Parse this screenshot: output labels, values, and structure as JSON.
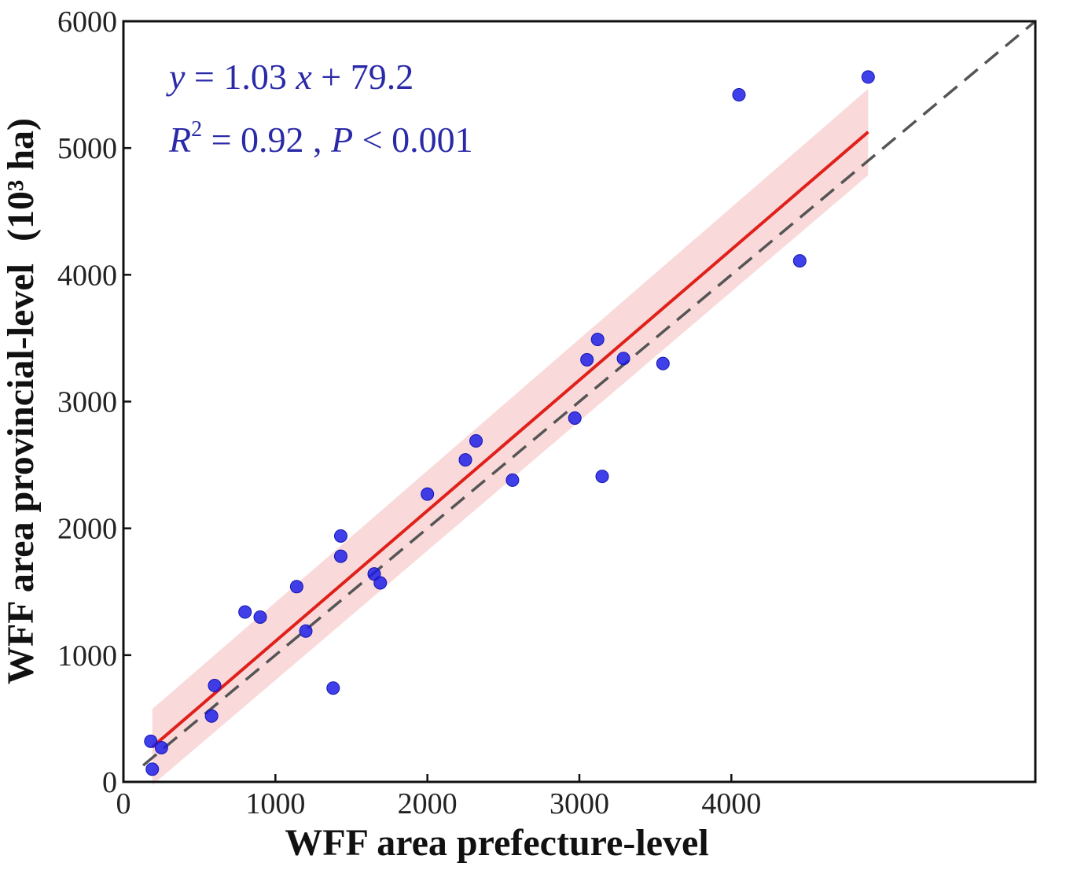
{
  "chart_data": {
    "type": "scatter",
    "xlabel": "WFF area prefecture-level",
    "ylabel": "WFF area provincial-level",
    "ylabel_unit": "(10³ ha)",
    "xlim": [
      0,
      6000
    ],
    "ylim": [
      0,
      6000
    ],
    "x_ticks": [
      "0",
      "1000",
      "2000",
      "3000",
      "4000"
    ],
    "y_ticks": [
      "0",
      "1000",
      "2000",
      "3000",
      "4000",
      "5000",
      "6000"
    ],
    "grid": false,
    "points": [
      {
        "x": 180,
        "y": 320
      },
      {
        "x": 190,
        "y": 100
      },
      {
        "x": 250,
        "y": 270
      },
      {
        "x": 580,
        "y": 520
      },
      {
        "x": 600,
        "y": 760
      },
      {
        "x": 800,
        "y": 1340
      },
      {
        "x": 900,
        "y": 1300
      },
      {
        "x": 1140,
        "y": 1540
      },
      {
        "x": 1200,
        "y": 1190
      },
      {
        "x": 1380,
        "y": 740
      },
      {
        "x": 1430,
        "y": 1780
      },
      {
        "x": 1430,
        "y": 1940
      },
      {
        "x": 1650,
        "y": 1640
      },
      {
        "x": 1690,
        "y": 1570
      },
      {
        "x": 2000,
        "y": 2270
      },
      {
        "x": 2250,
        "y": 2540
      },
      {
        "x": 2320,
        "y": 2690
      },
      {
        "x": 2560,
        "y": 2380
      },
      {
        "x": 2970,
        "y": 2870
      },
      {
        "x": 3050,
        "y": 3330
      },
      {
        "x": 3120,
        "y": 3490
      },
      {
        "x": 3150,
        "y": 2410
      },
      {
        "x": 3290,
        "y": 3340
      },
      {
        "x": 3550,
        "y": 3300
      },
      {
        "x": 4050,
        "y": 5420
      },
      {
        "x": 4450,
        "y": 4110
      },
      {
        "x": 4900,
        "y": 5560
      }
    ],
    "fit": {
      "slope": 1.03,
      "intercept": 79.2,
      "x_range": [
        190,
        4900
      ],
      "ci_halfwidth": [
        300,
        340
      ]
    },
    "identity_line": {
      "from": [
        130,
        130
      ],
      "to": [
        6000,
        6000
      ],
      "style": "dashed"
    },
    "colors": {
      "points": "#1f1fe6",
      "fit": "#e0201a",
      "band": "#f8d2d4",
      "identity": "#555555",
      "text": "#2a2aa8"
    },
    "annotations": {
      "equation_line1": "y = 1.03 x + 79.2",
      "equation_line2": "R² = 0.92 , P < 0.001"
    }
  },
  "annotation": {
    "eq_y": "y",
    "eq_rest": " = 1.03 ",
    "eq_x": "x",
    "eq_tail": " + 79.2",
    "r_letter": "R",
    "r_exp": "2",
    "r_rest": " = 0.92 , ",
    "p_letter": "P",
    "p_rest": " < 0.001"
  }
}
